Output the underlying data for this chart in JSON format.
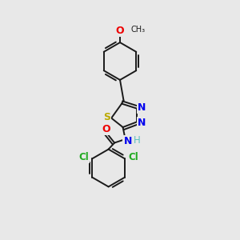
{
  "background_color": "#e8e8e8",
  "atom_colors": {
    "C": "#1a1a1a",
    "H": "#5bbfbf",
    "N": "#0000ee",
    "O": "#ee0000",
    "S": "#bbaa00",
    "Cl": "#22aa22"
  },
  "bond_color": "#1a1a1a",
  "bond_lw": 1.4,
  "figsize": [
    3.0,
    3.0
  ],
  "dpi": 100,
  "xlim": [
    0,
    10
  ],
  "ylim": [
    0,
    10
  ]
}
